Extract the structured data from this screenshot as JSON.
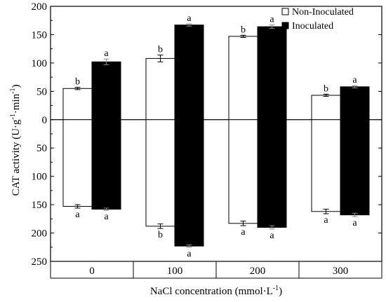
{
  "chart_data": {
    "type": "bar",
    "categories": [
      "0",
      "100",
      "200",
      "300"
    ],
    "ylabel_main": "CAT activity (U·g",
    "ylabel_exp1": "-1",
    "ylabel_mid": "·min",
    "ylabel_exp2": "-1",
    "ylabel_end": ")",
    "xlabel_main": "NaCl concentration (mmol·L",
    "xlabel_exp": "-1",
    "xlabel_end": ")",
    "ylim": [
      -250,
      200
    ],
    "yticks": [
      200,
      150,
      100,
      50,
      0,
      -50,
      -100,
      -150,
      -200,
      -250
    ],
    "ytick_labels": [
      "200",
      "150",
      "100",
      "50",
      "0",
      "50",
      "100",
      "150",
      "200",
      "250"
    ],
    "legend_position": "top-right",
    "series": [
      {
        "name": "Non-Inoculated",
        "fill": "#ffffff",
        "upper": [
          55,
          108,
          147,
          43
        ],
        "upper_err": [
          2,
          6,
          2,
          2
        ],
        "upper_sig": [
          "b",
          "b",
          "b",
          "b"
        ],
        "lower": [
          -153,
          -188,
          -183,
          -162
        ],
        "lower_err": [
          3,
          4,
          4,
          4
        ],
        "lower_sig": [
          "a",
          "b",
          "a",
          "a"
        ]
      },
      {
        "name": "Inoculated",
        "fill": "#000000",
        "upper": [
          102,
          167,
          164,
          58
        ],
        "upper_err": [
          5,
          2,
          3,
          2
        ],
        "upper_sig": [
          "a",
          "a",
          "a",
          "a"
        ],
        "lower": [
          -158,
          -223,
          -190,
          -168
        ],
        "lower_err": [
          2,
          2,
          3,
          3
        ],
        "lower_sig": [
          "a",
          "a",
          "a",
          "a"
        ]
      }
    ]
  }
}
